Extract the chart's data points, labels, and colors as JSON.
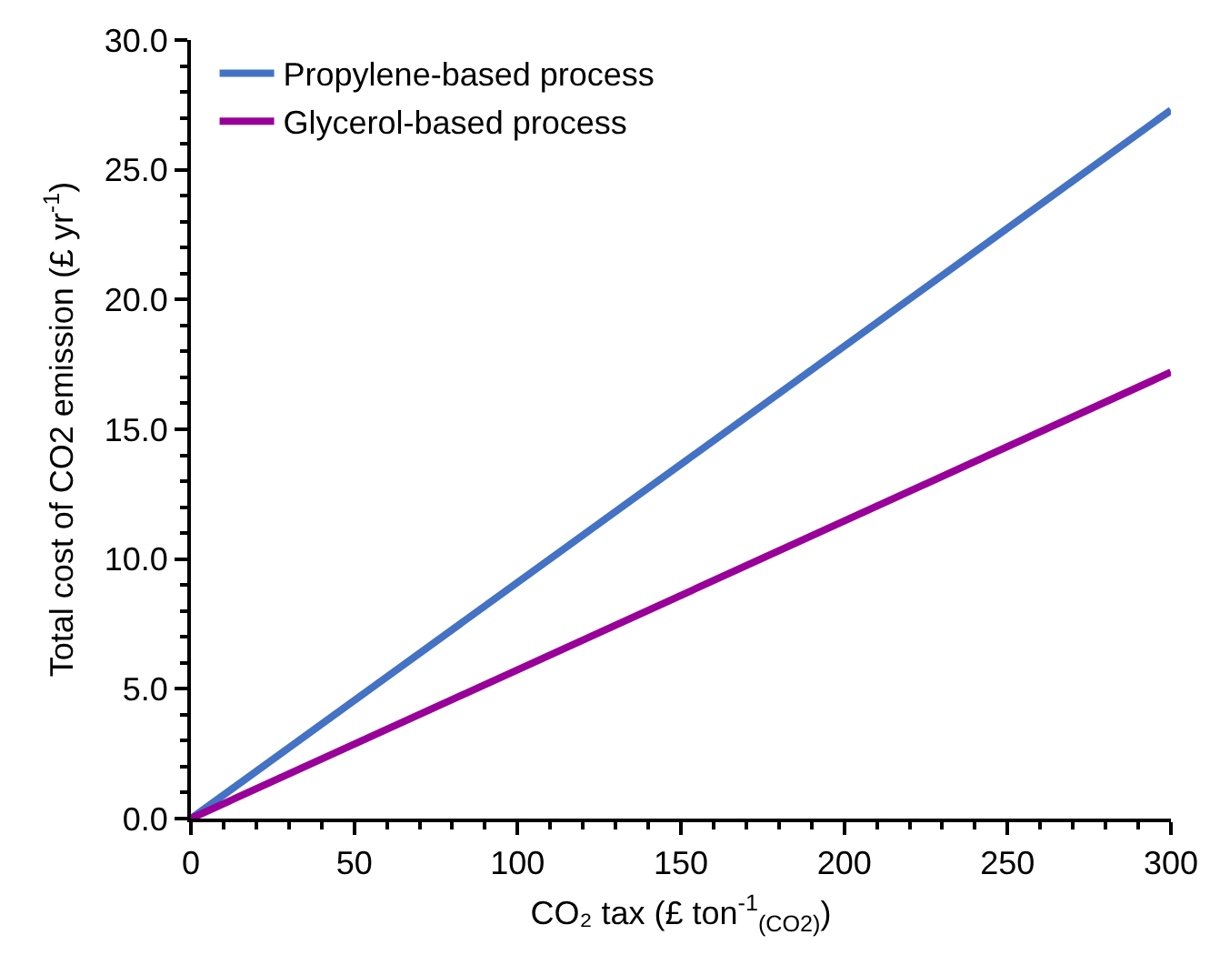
{
  "chart_data": {
    "type": "line",
    "xlabel": "CO₂ tax (£ ton$^{-1}$$_{(CO2)}$)",
    "ylabel": "Total cost of CO2 emission (£ yr$^{-1}$)",
    "x": [
      0,
      300
    ],
    "series": [
      {
        "name": "Propylene-based process",
        "color": "#4472c4",
        "values": [
          0,
          27.3
        ]
      },
      {
        "name": "Glycerol-based process",
        "color": "#990099",
        "values": [
          0,
          17.2
        ]
      }
    ],
    "xlim": [
      0,
      300
    ],
    "xticks": [
      0,
      50,
      100,
      150,
      200,
      250,
      300
    ],
    "ylim": [
      0,
      30
    ],
    "yticks": [
      {
        "value": 0,
        "label": "0.0"
      },
      {
        "value": 5,
        "label": "5.0"
      },
      {
        "value": 10,
        "label": "10.0"
      },
      {
        "value": 15,
        "label": "15.0"
      },
      {
        "value": 20,
        "label": "20.0"
      },
      {
        "value": 25,
        "label": "25.0"
      },
      {
        "value": 30,
        "label": "30.0"
      }
    ],
    "grid": false,
    "legend": "top left",
    "marker": "none",
    "line_style": "solid"
  }
}
